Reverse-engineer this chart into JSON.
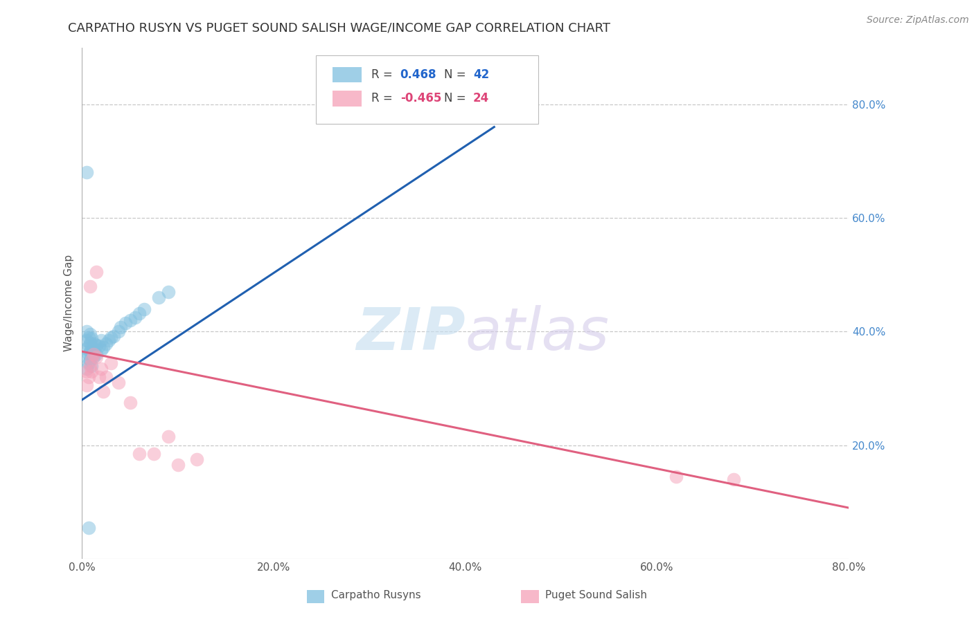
{
  "title": "CARPATHO RUSYN VS PUGET SOUND SALISH WAGE/INCOME GAP CORRELATION CHART",
  "source": "Source: ZipAtlas.com",
  "ylabel": "Wage/Income Gap",
  "xlim": [
    0.0,
    0.8
  ],
  "ylim": [
    0.0,
    0.9
  ],
  "xticks": [
    0.0,
    0.2,
    0.4,
    0.6,
    0.8
  ],
  "yticks": [
    0.2,
    0.4,
    0.6,
    0.8
  ],
  "xtick_labels": [
    "0.0%",
    "20.0%",
    "40.0%",
    "60.0%",
    "80.0%"
  ],
  "ytick_labels": [
    "20.0%",
    "40.0%",
    "60.0%",
    "80.0%"
  ],
  "blue_R": "0.468",
  "blue_N": "42",
  "pink_R": "-0.465",
  "pink_N": "24",
  "blue_scatter_x": [
    0.005,
    0.005,
    0.005,
    0.005,
    0.005,
    0.007,
    0.007,
    0.007,
    0.007,
    0.008,
    0.008,
    0.008,
    0.008,
    0.01,
    0.01,
    0.01,
    0.01,
    0.012,
    0.012,
    0.013,
    0.013,
    0.015,
    0.015,
    0.018,
    0.02,
    0.02,
    0.022,
    0.025,
    0.028,
    0.03,
    0.033,
    0.038,
    0.04,
    0.045,
    0.05,
    0.055,
    0.06,
    0.065,
    0.08,
    0.09,
    0.005,
    0.007
  ],
  "blue_scatter_y": [
    0.335,
    0.355,
    0.37,
    0.385,
    0.4,
    0.345,
    0.36,
    0.375,
    0.39,
    0.35,
    0.365,
    0.38,
    0.395,
    0.34,
    0.358,
    0.372,
    0.388,
    0.355,
    0.37,
    0.362,
    0.378,
    0.36,
    0.376,
    0.375,
    0.368,
    0.385,
    0.372,
    0.378,
    0.385,
    0.39,
    0.392,
    0.4,
    0.408,
    0.415,
    0.42,
    0.425,
    0.432,
    0.44,
    0.46,
    0.47,
    0.68,
    0.055
  ],
  "pink_scatter_x": [
    0.005,
    0.005,
    0.007,
    0.008,
    0.01,
    0.01,
    0.012,
    0.015,
    0.018,
    0.02,
    0.022,
    0.025,
    0.03,
    0.038,
    0.05,
    0.06,
    0.075,
    0.09,
    0.1,
    0.12,
    0.62,
    0.68,
    0.008,
    0.015
  ],
  "pink_scatter_y": [
    0.305,
    0.33,
    0.32,
    0.34,
    0.33,
    0.35,
    0.36,
    0.355,
    0.32,
    0.335,
    0.295,
    0.32,
    0.345,
    0.31,
    0.275,
    0.185,
    0.185,
    0.215,
    0.165,
    0.175,
    0.145,
    0.14,
    0.48,
    0.505
  ],
  "blue_line_x": [
    0.0,
    0.43
  ],
  "blue_line_y": [
    0.28,
    0.76
  ],
  "pink_line_x": [
    0.0,
    0.8
  ],
  "pink_line_y": [
    0.365,
    0.09
  ],
  "watermark_zip": "ZIP",
  "watermark_atlas": "atlas",
  "scatter_size": 200,
  "scatter_alpha": 0.5,
  "blue_color": "#7fbfdf",
  "pink_color": "#f5a0b8",
  "blue_line_color": "#2060b0",
  "pink_line_color": "#e06080",
  "grid_color": "#c8c8c8",
  "background_color": "#ffffff",
  "title_fontsize": 13,
  "axis_label_fontsize": 11,
  "tick_fontsize": 11,
  "right_tick_color": "#4488cc",
  "legend_R_color": "#333333",
  "legend_val_blue": "#2266cc",
  "legend_val_pink": "#dd4477"
}
